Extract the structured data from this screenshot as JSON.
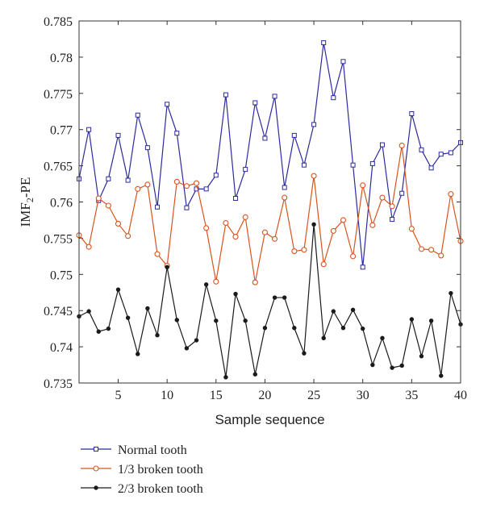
{
  "chart_data": {
    "type": "line",
    "xlabel": "Sample sequence",
    "ylabel_main": "IMF",
    "ylabel_sub": "2",
    "ylabel_suffix": "-PE",
    "xlim": [
      1,
      40
    ],
    "ylim": [
      0.735,
      0.785
    ],
    "x_ticks": [
      5,
      10,
      15,
      20,
      25,
      30,
      35,
      40
    ],
    "y_ticks": [
      0.735,
      0.74,
      0.745,
      0.75,
      0.755,
      0.76,
      0.765,
      0.77,
      0.775,
      0.78,
      0.785
    ],
    "y_tick_labels": [
      "0.735",
      "0.74",
      "0.745",
      "0.75",
      "0.755",
      "0.76",
      "0.765",
      "0.77",
      "0.775",
      "0.78",
      "0.785"
    ],
    "grid": false,
    "legend_position": "bottom-left, below plot",
    "x": [
      1,
      2,
      3,
      4,
      5,
      6,
      7,
      8,
      9,
      10,
      11,
      12,
      13,
      14,
      15,
      16,
      17,
      18,
      19,
      20,
      21,
      22,
      23,
      24,
      25,
      26,
      27,
      28,
      29,
      30,
      31,
      32,
      33,
      34,
      35,
      36,
      37,
      38,
      39,
      40
    ],
    "series": [
      {
        "name": "Normal tooth",
        "color": "#2b2b9e",
        "marker": "square",
        "values": [
          0.7632,
          0.77,
          0.7602,
          0.7632,
          0.7692,
          0.763,
          0.772,
          0.7675,
          0.7593,
          0.7735,
          0.7695,
          0.7592,
          0.7618,
          0.7618,
          0.7637,
          0.7748,
          0.7605,
          0.7645,
          0.7737,
          0.7688,
          0.7746,
          0.762,
          0.7692,
          0.7651,
          0.7707,
          0.782,
          0.7744,
          0.7794,
          0.7651,
          0.751,
          0.7653,
          0.7679,
          0.7576,
          0.7612,
          0.7722,
          0.7672,
          0.7647,
          0.7666,
          0.7668,
          0.7682
        ]
      },
      {
        "name": "1/3 broken tooth",
        "color": "#d9531e",
        "marker": "circle",
        "values": [
          0.7554,
          0.7538,
          0.7605,
          0.7595,
          0.757,
          0.7553,
          0.7618,
          0.7624,
          0.7528,
          0.7512,
          0.7628,
          0.7622,
          0.7626,
          0.7564,
          0.749,
          0.7571,
          0.7552,
          0.7579,
          0.7489,
          0.7558,
          0.7549,
          0.7606,
          0.7532,
          0.7534,
          0.7636,
          0.7514,
          0.756,
          0.7575,
          0.7525,
          0.7623,
          0.7568,
          0.7606,
          0.7594,
          0.7678,
          0.7563,
          0.7535,
          0.7534,
          0.7526,
          0.7611,
          0.7546
        ]
      },
      {
        "name": "2/3 broken tooth",
        "color": "#1a1a1a",
        "marker": "dot",
        "values": [
          0.7442,
          0.7449,
          0.7421,
          0.7425,
          0.7479,
          0.744,
          0.739,
          0.7453,
          0.7416,
          0.751,
          0.7437,
          0.7398,
          0.7409,
          0.7486,
          0.7436,
          0.7358,
          0.7473,
          0.7436,
          0.7362,
          0.7426,
          0.7468,
          0.7468,
          0.7426,
          0.7391,
          0.7569,
          0.7412,
          0.7449,
          0.7426,
          0.7451,
          0.7425,
          0.7375,
          0.7412,
          0.7371,
          0.7374,
          0.7438,
          0.7387,
          0.7436,
          0.736,
          0.7474,
          0.7431
        ]
      }
    ]
  }
}
